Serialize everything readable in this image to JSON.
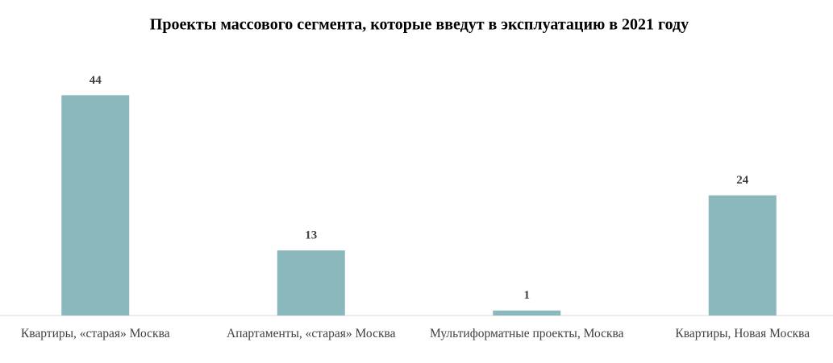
{
  "chart_data": {
    "type": "bar",
    "title": "Проекты  массового  сегмента,  которые  введут  в эксплуатацию  в 2021 году",
    "categories": [
      "Квартиры, «старая» Москва",
      "Апартаменты, «старая» Москва",
      "Мультиформатные проекты, Москва",
      "Квартиры, Новая Москва"
    ],
    "values": [
      44,
      13,
      1,
      24
    ],
    "color": "#8ab8bd",
    "ylim": [
      0,
      50
    ]
  }
}
